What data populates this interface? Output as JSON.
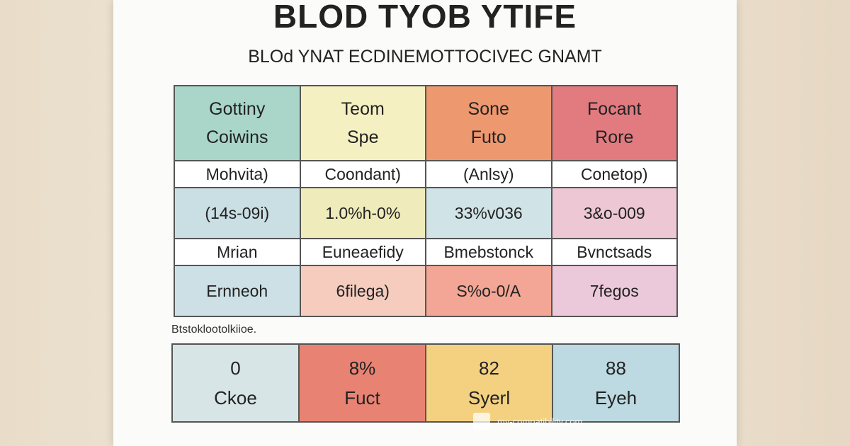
{
  "header": {
    "title": "BLOD TYOB YTIFE",
    "subtitle": "BLOd YNAT ECDINEMOTTOCIVEC GNAMT"
  },
  "table": {
    "header": [
      [
        "Gottiny",
        "Coiwins"
      ],
      [
        "Teom",
        "Spe"
      ],
      [
        "Sone",
        "Futo"
      ],
      [
        "Focant",
        "Rore"
      ]
    ],
    "rows": [
      [
        "Mohvita)",
        "Coondant)",
        "(Anlsy)",
        "Conetop)"
      ],
      [
        "(14s-09i)",
        "1.0%h-0%",
        "33%v036",
        "3&o-009"
      ],
      [
        "Mrian",
        "Euneaefidy",
        "Bmebstonck",
        "Bvnctsads"
      ],
      [
        "Ernneoh",
        "6filega)",
        "S%o-0/A",
        "7fegos"
      ]
    ]
  },
  "caption": "Btstoklootolkiioe.",
  "bottom_table": [
    [
      "0",
      "Ckoe"
    ],
    [
      "8%",
      "Fuct"
    ],
    [
      "82",
      "Syerl"
    ],
    [
      "88",
      "Eyeh"
    ]
  ],
  "watermark": "my-compatibility.com"
}
